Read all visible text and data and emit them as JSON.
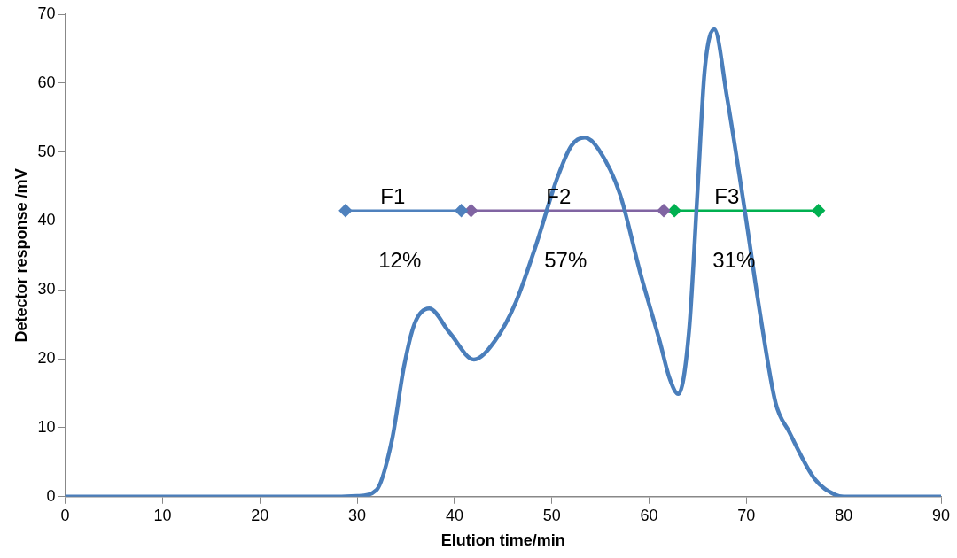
{
  "chart_data": {
    "type": "line",
    "xlabel": "Elution time/min",
    "ylabel": "Detector response /mV",
    "xlim": [
      0,
      90
    ],
    "xticks": [
      0,
      10,
      20,
      30,
      40,
      50,
      60,
      70,
      80,
      90
    ],
    "ylim": [
      0,
      70
    ],
    "yticks": [
      0,
      10,
      20,
      30,
      40,
      50,
      60,
      70
    ],
    "grid": false,
    "legend": false,
    "series": [
      {
        "color": "#4a7ebb",
        "marker": "none",
        "x": [
          0,
          10,
          20,
          28,
          30,
          32.0,
          33.6,
          34.8,
          35.9,
          37.4,
          39.5,
          42.0,
          44.1,
          46.3,
          48.4,
          50.5,
          52.0,
          53.4,
          54.8,
          57.0,
          59.1,
          61.1,
          62.1,
          63.0,
          64.1,
          65.0,
          65.7,
          66.7,
          68.0,
          69.8,
          71.4,
          73.0,
          74.4,
          77.0,
          79.1,
          80,
          85,
          90
        ],
        "values": [
          0,
          0,
          0,
          0,
          0.1,
          1.0,
          8.4,
          18.8,
          25.1,
          27.3,
          23.8,
          19.9,
          22.5,
          28.2,
          36.6,
          46.0,
          50.9,
          52.1,
          50.4,
          43.9,
          32.4,
          22.5,
          17.2,
          14.9,
          24.0,
          44.9,
          61.7,
          67.8,
          58.0,
          41.8,
          26.6,
          13.6,
          9.4,
          2.6,
          0.3,
          0,
          0,
          0
        ]
      },
      {
        "color": "#4f81bd",
        "marker": "diamond",
        "x": [
          28.8,
          40.7
        ],
        "values": [
          41.5,
          41.5
        ]
      },
      {
        "color": "#8064a2",
        "marker": "diamond",
        "x": [
          41.7,
          61.5
        ],
        "values": [
          41.5,
          41.5
        ]
      },
      {
        "color": "#00b050",
        "marker": "diamond",
        "x": [
          62.6,
          77.4
        ],
        "values": [
          41.5,
          41.5
        ]
      }
    ],
    "annotations": [
      "F1",
      "12%",
      "F2",
      "57%",
      "F3",
      "31%"
    ]
  }
}
